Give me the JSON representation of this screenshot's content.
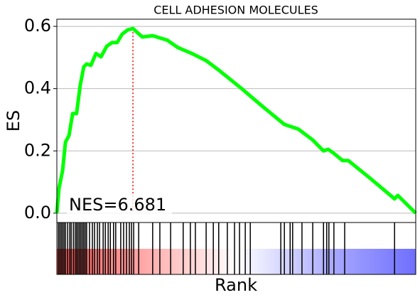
{
  "chart_data": {
    "type": "line",
    "title": "CELL ADHESION MOLECULES",
    "ylabel": "ES",
    "xlabel": "Rank",
    "annotation": "NES=6.681",
    "xlim": [
      0,
      100
    ],
    "ylim": [
      -0.03,
      0.623
    ],
    "yticks": [
      {
        "value": 0,
        "label": "0.0"
      },
      {
        "value": 0.2,
        "label": "0.2"
      },
      {
        "value": 0.4,
        "label": "0.4"
      },
      {
        "value": 0.6,
        "label": "0.6"
      }
    ],
    "grid": true,
    "series": [
      {
        "name": "ES",
        "color": "#00ff00",
        "x": [
          0,
          0.6,
          1.6,
          2.4,
          3.4,
          4.4,
          5.5,
          6.5,
          7.5,
          8.3,
          9.5,
          10.9,
          12.3,
          13.9,
          15.4,
          16.8,
          18.2,
          19.8,
          21.2,
          23.8,
          26.7,
          30.7,
          33.7,
          37.6,
          41.6,
          45.5,
          51.5,
          57.4,
          63.4,
          67.3,
          71.3,
          74.3,
          75.6,
          77.2,
          79.6,
          81.2,
          87.1,
          94.1,
          95,
          100
        ],
        "values": [
          0,
          0.08,
          0.137,
          0.228,
          0.25,
          0.32,
          0.32,
          0.41,
          0.47,
          0.479,
          0.475,
          0.513,
          0.502,
          0.536,
          0.548,
          0.548,
          0.575,
          0.589,
          0.593,
          0.566,
          0.57,
          0.556,
          0.532,
          0.513,
          0.49,
          0.456,
          0.4,
          0.342,
          0.285,
          0.27,
          0.235,
          0.2,
          0.205,
          0.192,
          0.169,
          0.169,
          0.114,
          0.046,
          0.057,
          0
        ]
      }
    ],
    "hits": [
      0.4,
      0.8,
      1.2,
      1.6,
      2.0,
      2.4,
      3.0,
      3.6,
      4.0,
      4.6,
      5.1,
      5.5,
      5.9,
      6.3,
      6.7,
      7.1,
      7.5,
      7.9,
      8.3,
      9.1,
      9.9,
      10.5,
      11.3,
      11.9,
      12.9,
      13.5,
      14.3,
      14.9,
      15.8,
      16.4,
      17.8,
      18.6,
      19.4,
      20.2,
      20.8,
      21.4,
      22.8,
      26.7,
      28.7,
      31.7,
      35.2,
      37.2,
      38.6,
      41.6,
      43.6,
      45.1,
      47.5,
      49.5,
      50.9,
      52.5,
      53.9,
      62.4,
      63.4,
      65.0,
      65.7,
      68.3,
      71.3,
      74.3,
      75.2,
      75.8,
      77.2,
      80.2,
      94.1
    ]
  }
}
